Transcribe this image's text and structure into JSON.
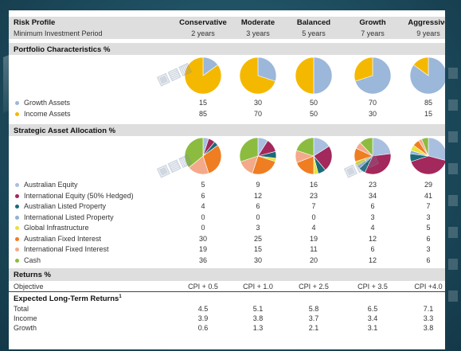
{
  "columns": [
    "Conservative",
    "Moderate",
    "Balanced",
    "Growth",
    "Aggressive"
  ],
  "header": {
    "title": "Risk Profile",
    "period_label": "Minimum Investment Period",
    "periods": [
      "2 years",
      "3 years",
      "5 years",
      "7 years",
      "9 years"
    ]
  },
  "portfolio": {
    "title": "Portfolio Characteristics %",
    "rows": [
      {
        "label": "Growth Assets",
        "color": "#9bb7d9",
        "values": [
          "15",
          "30",
          "50",
          "70",
          "85"
        ]
      },
      {
        "label": "Income Assets",
        "color": "#f5b800",
        "values": [
          "85",
          "70",
          "50",
          "30",
          "15"
        ]
      }
    ]
  },
  "allocation": {
    "title": "Strategic Asset Allocation %",
    "rows": [
      {
        "label": "Australian Equity",
        "color": "#a8bfe0",
        "values": [
          "5",
          "9",
          "16",
          "23",
          "29"
        ]
      },
      {
        "label": "International Equity (50% Hedged)",
        "color": "#a3285b",
        "values": [
          "6",
          "12",
          "23",
          "34",
          "41"
        ]
      },
      {
        "label": "Australian Listed Property",
        "color": "#1b6a7a",
        "values": [
          "4",
          "6",
          "7",
          "6",
          "7"
        ]
      },
      {
        "label": "International Listed Property",
        "color": "#8fb0d8",
        "values": [
          "0",
          "0",
          "0",
          "3",
          "3"
        ]
      },
      {
        "label": "Global Infrastructure",
        "color": "#e8e23a",
        "values": [
          "0",
          "3",
          "4",
          "4",
          "5"
        ]
      },
      {
        "label": "Australian Fixed Interest",
        "color": "#ef7d22",
        "values": [
          "30",
          "25",
          "19",
          "12",
          "6"
        ]
      },
      {
        "label": "International Fixed Interest",
        "color": "#f3a98a",
        "values": [
          "19",
          "15",
          "11",
          "6",
          "3"
        ]
      },
      {
        "label": "Cash",
        "color": "#8cbc3f",
        "values": [
          "36",
          "30",
          "20",
          "12",
          "6"
        ]
      }
    ]
  },
  "returns": {
    "title": "Returns %",
    "objective_label": "Objective",
    "objective": [
      "CPI + 0.5",
      "CPI + 1.0",
      "CPI + 2.5",
      "CPI + 3.5",
      "CPI +4.0"
    ],
    "expected_title": "Expected Long-Term Returns",
    "expected_sup": "1",
    "rows": [
      {
        "label": "Total",
        "values": [
          "4.5",
          "5.1",
          "5.8",
          "6.5",
          "7.1"
        ]
      },
      {
        "label": "Income",
        "values": [
          "3.9",
          "3.8",
          "3.7",
          "3.4",
          "3.3"
        ]
      },
      {
        "label": "Growth",
        "values": [
          "0.6",
          "1.3",
          "2.1",
          "3.1",
          "3.8"
        ]
      }
    ]
  },
  "chart_data": [
    {
      "type": "pie",
      "title": "Portfolio Characteristics %",
      "categories": [
        "Growth Assets",
        "Income Assets"
      ],
      "series": [
        {
          "name": "Conservative",
          "values": [
            15,
            85
          ]
        },
        {
          "name": "Moderate",
          "values": [
            30,
            70
          ]
        },
        {
          "name": "Balanced",
          "values": [
            50,
            50
          ]
        },
        {
          "name": "Growth",
          "values": [
            70,
            30
          ]
        },
        {
          "name": "Aggressive",
          "values": [
            85,
            15
          ]
        }
      ]
    },
    {
      "type": "pie",
      "title": "Strategic Asset Allocation %",
      "categories": [
        "Australian Equity",
        "International Equity (50% Hedged)",
        "Australian Listed Property",
        "International Listed Property",
        "Global Infrastructure",
        "Australian Fixed Interest",
        "International Fixed Interest",
        "Cash"
      ],
      "series": [
        {
          "name": "Conservative",
          "values": [
            5,
            6,
            4,
            0,
            0,
            30,
            19,
            36
          ]
        },
        {
          "name": "Moderate",
          "values": [
            9,
            12,
            6,
            0,
            3,
            25,
            15,
            30
          ]
        },
        {
          "name": "Balanced",
          "values": [
            16,
            23,
            7,
            0,
            4,
            19,
            11,
            20
          ]
        },
        {
          "name": "Growth",
          "values": [
            23,
            34,
            6,
            3,
            4,
            12,
            6,
            12
          ]
        },
        {
          "name": "Aggressive",
          "values": [
            29,
            41,
            7,
            3,
            5,
            6,
            3,
            6
          ]
        }
      ]
    }
  ]
}
